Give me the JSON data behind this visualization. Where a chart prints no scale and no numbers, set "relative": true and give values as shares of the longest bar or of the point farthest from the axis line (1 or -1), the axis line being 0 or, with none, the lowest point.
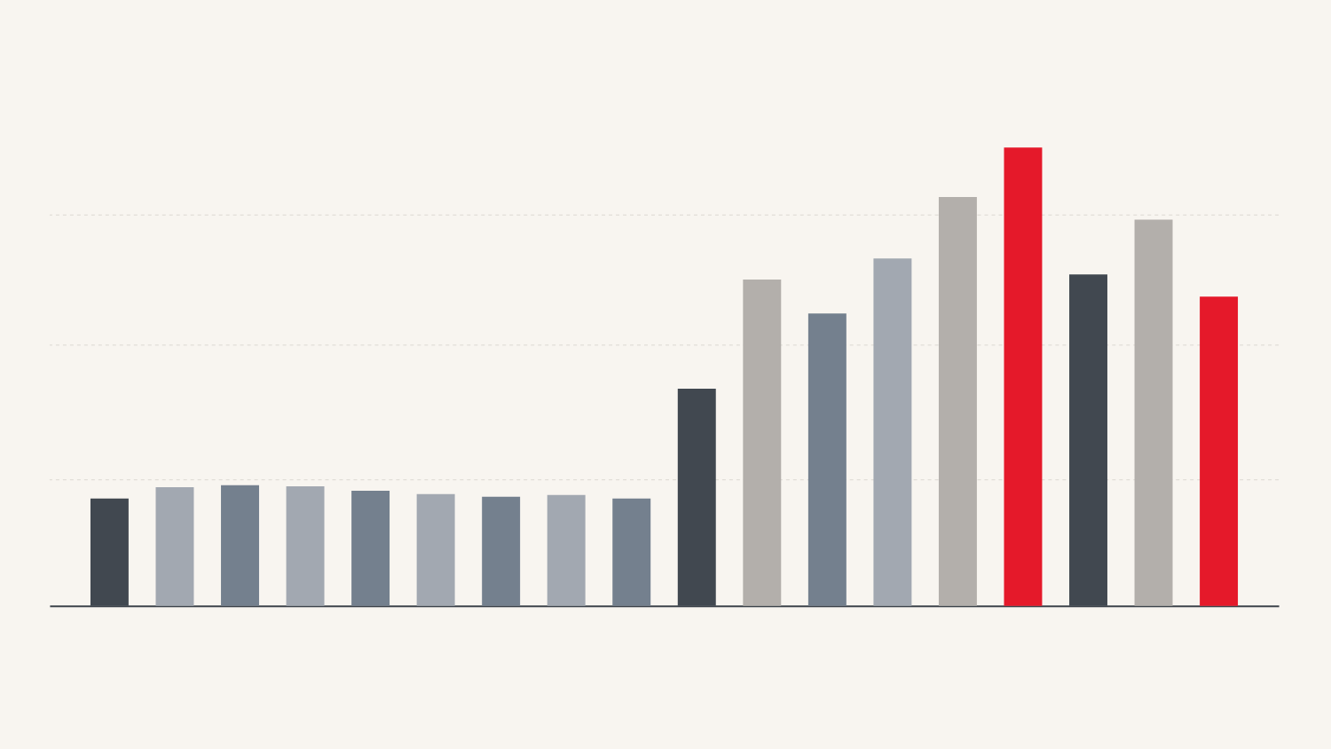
{
  "chart_data": {
    "type": "bar",
    "relative": true,
    "ref_lines": [
      {
        "axis": "y",
        "value": 0.275,
        "color": "#dcd8d2",
        "line_style": "dashed"
      },
      {
        "axis": "y",
        "value": 0.569,
        "color": "#dcd8d2",
        "line_style": "dashed"
      },
      {
        "axis": "y",
        "value": 0.853,
        "color": "#dcd8d2",
        "line_style": "dashed"
      }
    ],
    "categories": [
      null,
      null,
      null,
      null,
      null,
      null,
      null,
      null,
      null,
      null,
      null,
      null,
      null,
      null,
      null,
      null,
      null,
      null
    ],
    "values": [
      0.234,
      0.259,
      0.263,
      0.261,
      0.251,
      0.244,
      0.238,
      0.242,
      0.234,
      0.474,
      0.712,
      0.638,
      0.758,
      0.892,
      1,
      0.723,
      0.843,
      0.675
    ],
    "colors": [
      "#414850",
      "#a2a8b1",
      "#74808e",
      "#a2a8b1",
      "#74808e",
      "#a2a8b1",
      "#74808e",
      "#a2a8b1",
      "#74808e",
      "#414850",
      "#b3afab",
      "#74808e",
      "#a2a8b1",
      "#b3afab",
      "#e5192a",
      "#414850",
      "#b3afab",
      "#e5192a"
    ]
  }
}
